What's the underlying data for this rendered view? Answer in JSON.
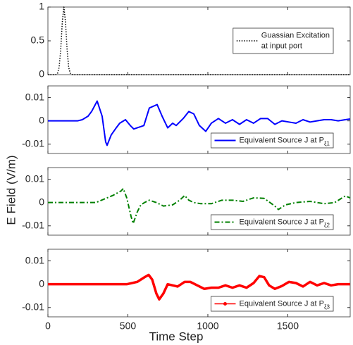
{
  "ylabel": "E  Field (V/m)",
  "xlabel": "Time Step",
  "chart_data": [
    {
      "type": "line",
      "xlim": [
        0,
        1890
      ],
      "ylim": [
        0,
        1
      ],
      "yticks": [
        0,
        0.5,
        1
      ],
      "xticks": [
        0,
        500,
        1000,
        1500
      ],
      "show_xticklabels": false,
      "legend": "center right",
      "x": [
        0,
        40,
        50,
        60,
        70,
        80,
        90,
        100,
        110,
        120,
        130,
        140,
        150,
        160,
        300,
        1890
      ],
      "series": [
        {
          "name_lines": [
            "Guassian Excitation",
            "at input port"
          ],
          "color": "#000000",
          "linestyle": "dotted",
          "values": [
            0,
            0,
            0.002,
            0.018,
            0.105,
            0.368,
            0.779,
            1,
            0.779,
            0.368,
            0.105,
            0.018,
            0.002,
            0,
            0,
            0
          ]
        }
      ]
    },
    {
      "type": "line",
      "xlim": [
        0,
        1890
      ],
      "ylim": [
        -0.014,
        0.015
      ],
      "yticks": [
        0.01,
        0,
        -0.01
      ],
      "xticks": [
        0,
        500,
        1000,
        1500
      ],
      "show_xticklabels": false,
      "legend": "lower right",
      "x": [
        0,
        150,
        185,
        215,
        251,
        273,
        308,
        339,
        361,
        370,
        396,
        427,
        449,
        485,
        515,
        537,
        600,
        634,
        683,
        714,
        749,
        780,
        802,
        846,
        881,
        912,
        947,
        987,
        1022,
        1066,
        1110,
        1154,
        1198,
        1242,
        1286,
        1330,
        1374,
        1419,
        1463,
        1507,
        1551,
        1595,
        1639,
        1683,
        1727,
        1771,
        1815,
        1859,
        1890
      ],
      "series": [
        {
          "name": "Equivalent Source J at P",
          "name_subscript": "ξ1",
          "color": "#0000ff",
          "linestyle": "solid",
          "values": [
            0,
            0,
            0,
            0.0005,
            0.002,
            0.004,
            0.0085,
            0.002,
            -0.009,
            -0.0105,
            -0.006,
            -0.003,
            -0.001,
            0.0005,
            -0.002,
            -0.0035,
            -0.002,
            0.0055,
            0.007,
            0.002,
            -0.003,
            -0.001,
            -0.002,
            0.001,
            0.004,
            0.003,
            -0.002,
            -0.0045,
            -0.001,
            0.001,
            -0.001,
            0.0005,
            -0.0015,
            0.0005,
            -0.001,
            0.001,
            0.001,
            -0.0015,
            0,
            -0.0005,
            -0.001,
            0.0005,
            -0.0005,
            0,
            0.0005,
            0.0005,
            0,
            0.0005,
            0.0008
          ]
        }
      ]
    },
    {
      "type": "line",
      "xlim": [
        0,
        1890
      ],
      "ylim": [
        -0.014,
        0.015
      ],
      "yticks": [
        0.01,
        0,
        -0.01
      ],
      "xticks": [
        0,
        500,
        1000,
        1500
      ],
      "show_xticklabels": false,
      "legend": "lower right",
      "x": [
        0,
        300,
        405,
        458,
        471,
        493,
        520,
        533,
        559,
        581,
        604,
        634,
        678,
        722,
        780,
        824,
        855,
        881,
        912,
        956,
        1022,
        1088,
        1154,
        1220,
        1286,
        1352,
        1419,
        1441,
        1485,
        1551,
        1639,
        1727,
        1793,
        1859,
        1890
      ],
      "series": [
        {
          "name": "Equivalent Source J at P",
          "name_subscript": "ξ2",
          "color": "#008000",
          "linestyle": "dashdot",
          "values": [
            0,
            0,
            0.003,
            0.005,
            0.006,
            0.002,
            -0.006,
            -0.009,
            -0.004,
            -0.001,
            0,
            0.001,
            0,
            -0.0015,
            -0.001,
            0.001,
            0.003,
            0.001,
            0,
            -0.0005,
            -0.0005,
            0.001,
            0.001,
            0.0005,
            0.002,
            0.0018,
            -0.0015,
            -0.003,
            -0.001,
            0,
            0.0005,
            -0.0005,
            0,
            0.0028,
            0.002
          ]
        }
      ]
    },
    {
      "type": "line",
      "xlim": [
        0,
        1890
      ],
      "ylim": [
        -0.014,
        0.015
      ],
      "yticks": [
        0.01,
        0,
        -0.01
      ],
      "xticks": [
        0,
        500,
        1000,
        1500
      ],
      "show_xticklabels": true,
      "legend": "lower right",
      "x": [
        0,
        493,
        559,
        604,
        630,
        652,
        678,
        696,
        722,
        749,
        780,
        811,
        855,
        890,
        934,
        978,
        1022,
        1066,
        1110,
        1154,
        1198,
        1242,
        1286,
        1322,
        1352,
        1383,
        1419,
        1463,
        1507,
        1551,
        1595,
        1639,
        1683,
        1727,
        1771,
        1815,
        1890
      ],
      "series": [
        {
          "name": "Equivalent Source J at P",
          "name_subscript": "ξ3",
          "color": "#ff0000",
          "linestyle": "solid",
          "marker": "o",
          "values": [
            0,
            0,
            0.001,
            0.003,
            0.004,
            0.002,
            -0.004,
            -0.0065,
            -0.004,
            0,
            -0.0005,
            -0.001,
            0.001,
            0.001,
            -0.0005,
            -0.002,
            -0.0015,
            -0.0015,
            -0.0005,
            -0.0015,
            -0.0005,
            -0.0015,
            0.0005,
            0.0035,
            0.003,
            -0.0005,
            -0.002,
            -0.0008,
            0.001,
            0.0005,
            -0.001,
            0.001,
            -0.0005,
            0.0005,
            -0.0005,
            0,
            0
          ]
        }
      ]
    }
  ]
}
